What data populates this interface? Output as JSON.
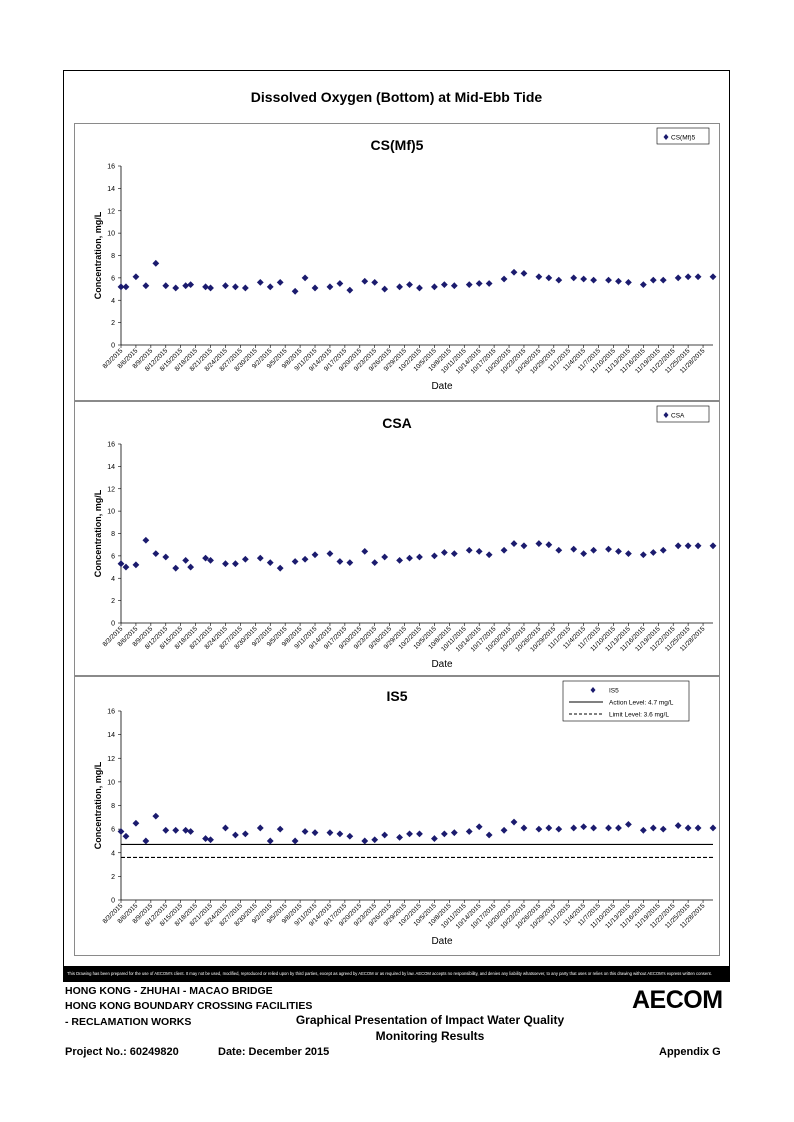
{
  "page": {
    "main_title": "Dissolved Oxygen (Bottom) at Mid-Ebb Tide",
    "disclaimer": "This Drawing has been prepared for the use of AECOM's client. It may not be used, modified, reproduced or relied upon by third parties, except as agreed by AECOM or as required by law. AECOM accepts no responsibility, and denies any liability whatsoever, to any party that uses or relies on this drawing without AECOM's express written consent.",
    "title_block": {
      "line1": "HONG KONG - ZHUHAI - MACAO BRIDGE",
      "line2": "HONG KONG BOUNDARY CROSSING FACILITIES",
      "line3": "- RECLAMATION WORKS",
      "drawing_title_1": "Graphical Presentation of Impact Water Quality",
      "drawing_title_2": "Monitoring Results",
      "project_no": "Project No.: 60249820",
      "date": "Date: December 2015",
      "appendix": "Appendix G",
      "logo": "AECOM"
    }
  },
  "chart_data": [
    {
      "type": "scatter",
      "title": "CS(Mf)5",
      "xlabel": "Date",
      "ylabel": "Concentration, mg/L",
      "ylim": [
        0,
        16
      ],
      "yticks": [
        0,
        2,
        4,
        6,
        8,
        10,
        12,
        14,
        16
      ],
      "xticks": [
        "8/3/2015",
        "8/6/2015",
        "8/9/2015",
        "8/12/2015",
        "8/15/2015",
        "8/18/2015",
        "8/21/2015",
        "8/24/2015",
        "8/27/2015",
        "8/30/2015",
        "9/2/2015",
        "9/5/2015",
        "9/8/2015",
        "9/11/2015",
        "9/14/2015",
        "9/17/2015",
        "9/20/2015",
        "9/23/2015",
        "9/26/2015",
        "9/29/2015",
        "10/2/2015",
        "10/5/2015",
        "10/8/2015",
        "10/11/2015",
        "10/14/2015",
        "10/17/2015",
        "10/20/2015",
        "10/23/2015",
        "10/26/2015",
        "10/29/2015",
        "11/1/2015",
        "11/4/2015",
        "11/7/2015",
        "11/10/2015",
        "11/13/2015",
        "11/16/2015",
        "11/19/2015",
        "11/22/2015",
        "11/25/2015",
        "11/28/2015"
      ],
      "legend": {
        "position": "top-right",
        "entries": [
          "CS(Mf)5"
        ]
      },
      "series": [
        {
          "name": "CS(Mf)5",
          "marker": "diamond",
          "color": "#1b1b6e",
          "x": [
            "8/3/2015",
            "8/4/2015",
            "8/6/2015",
            "8/8/2015",
            "8/10/2015",
            "8/12/2015",
            "8/14/2015",
            "8/16/2015",
            "8/17/2015",
            "8/20/2015",
            "8/21/2015",
            "8/24/2015",
            "8/26/2015",
            "8/28/2015",
            "8/31/2015",
            "9/2/2015",
            "9/4/2015",
            "9/7/2015",
            "9/9/2015",
            "9/11/2015",
            "9/14/2015",
            "9/16/2015",
            "9/18/2015",
            "9/21/2015",
            "9/23/2015",
            "9/25/2015",
            "9/28/2015",
            "9/30/2015",
            "10/2/2015",
            "10/5/2015",
            "10/7/2015",
            "10/9/2015",
            "10/12/2015",
            "10/14/2015",
            "10/16/2015",
            "10/19/2015",
            "10/21/2015",
            "10/23/2015",
            "10/26/2015",
            "10/28/2015",
            "10/30/2015",
            "11/2/2015",
            "11/4/2015",
            "11/6/2015",
            "11/9/2015",
            "11/11/2015",
            "11/13/2015",
            "11/16/2015",
            "11/18/2015",
            "11/20/2015",
            "11/23/2015",
            "11/25/2015",
            "11/27/2015",
            "11/30/2015"
          ],
          "values": [
            5.2,
            5.2,
            6.1,
            5.3,
            7.3,
            5.3,
            5.1,
            5.3,
            5.4,
            5.2,
            5.1,
            5.3,
            5.2,
            5.1,
            5.6,
            5.2,
            5.6,
            4.8,
            6.0,
            5.1,
            5.2,
            5.5,
            4.9,
            5.7,
            5.6,
            5.0,
            5.2,
            5.4,
            5.1,
            5.2,
            5.4,
            5.3,
            5.4,
            5.5,
            5.5,
            5.9,
            6.5,
            6.4,
            6.1,
            6.0,
            5.8,
            6.0,
            5.9,
            5.8,
            5.8,
            5.7,
            5.6,
            5.4,
            5.8,
            5.8,
            6.0,
            6.1,
            6.1,
            6.1
          ]
        }
      ]
    },
    {
      "type": "scatter",
      "title": "CSA",
      "xlabel": "Date",
      "ylabel": "Concentration, mg/L",
      "ylim": [
        0,
        16
      ],
      "yticks": [
        0,
        2,
        4,
        6,
        8,
        10,
        12,
        14,
        16
      ],
      "xticks": [
        "8/3/2015",
        "8/6/2015",
        "8/9/2015",
        "8/12/2015",
        "8/15/2015",
        "8/18/2015",
        "8/21/2015",
        "8/24/2015",
        "8/27/2015",
        "8/30/2015",
        "9/2/2015",
        "9/5/2015",
        "9/8/2015",
        "9/11/2015",
        "9/14/2015",
        "9/17/2015",
        "9/20/2015",
        "9/23/2015",
        "9/26/2015",
        "9/29/2015",
        "10/2/2015",
        "10/5/2015",
        "10/8/2015",
        "10/11/2015",
        "10/14/2015",
        "10/17/2015",
        "10/20/2015",
        "10/23/2015",
        "10/26/2015",
        "10/29/2015",
        "11/1/2015",
        "11/4/2015",
        "11/7/2015",
        "11/10/2015",
        "11/13/2015",
        "11/16/2015",
        "11/19/2015",
        "11/22/2015",
        "11/25/2015",
        "11/28/2015"
      ],
      "legend": {
        "position": "top-right",
        "entries": [
          "CSA"
        ]
      },
      "series": [
        {
          "name": "CSA",
          "marker": "diamond",
          "color": "#1b1b6e",
          "x": [
            "8/3/2015",
            "8/4/2015",
            "8/6/2015",
            "8/8/2015",
            "8/10/2015",
            "8/12/2015",
            "8/14/2015",
            "8/16/2015",
            "8/17/2015",
            "8/20/2015",
            "8/21/2015",
            "8/24/2015",
            "8/26/2015",
            "8/28/2015",
            "8/31/2015",
            "9/2/2015",
            "9/4/2015",
            "9/7/2015",
            "9/9/2015",
            "9/11/2015",
            "9/14/2015",
            "9/16/2015",
            "9/18/2015",
            "9/21/2015",
            "9/23/2015",
            "9/25/2015",
            "9/28/2015",
            "9/30/2015",
            "10/2/2015",
            "10/5/2015",
            "10/7/2015",
            "10/9/2015",
            "10/12/2015",
            "10/14/2015",
            "10/16/2015",
            "10/19/2015",
            "10/21/2015",
            "10/23/2015",
            "10/26/2015",
            "10/28/2015",
            "10/30/2015",
            "11/2/2015",
            "11/4/2015",
            "11/6/2015",
            "11/9/2015",
            "11/11/2015",
            "11/13/2015",
            "11/16/2015",
            "11/18/2015",
            "11/20/2015",
            "11/23/2015",
            "11/25/2015",
            "11/27/2015",
            "11/30/2015"
          ],
          "values": [
            5.3,
            5.0,
            5.2,
            7.4,
            6.2,
            5.9,
            4.9,
            5.6,
            5.0,
            5.8,
            5.6,
            5.3,
            5.3,
            5.7,
            5.8,
            5.4,
            4.9,
            5.5,
            5.7,
            6.1,
            6.2,
            5.5,
            5.4,
            6.4,
            5.4,
            5.9,
            5.6,
            5.8,
            5.9,
            6.0,
            6.3,
            6.2,
            6.5,
            6.4,
            6.1,
            6.5,
            7.1,
            6.9,
            7.1,
            7.0,
            6.5,
            6.6,
            6.2,
            6.5,
            6.6,
            6.4,
            6.2,
            6.1,
            6.3,
            6.5,
            6.9,
            6.9,
            6.9,
            6.9
          ]
        }
      ]
    },
    {
      "type": "scatter",
      "title": "IS5",
      "xlabel": "Date",
      "ylabel": "Concentration, mg/L",
      "ylim": [
        0,
        16
      ],
      "yticks": [
        0,
        2,
        4,
        6,
        8,
        10,
        12,
        14,
        16
      ],
      "xticks": [
        "8/3/2015",
        "8/6/2015",
        "8/9/2015",
        "8/12/2015",
        "8/15/2015",
        "8/18/2015",
        "8/21/2015",
        "8/24/2015",
        "8/27/2015",
        "8/30/2015",
        "9/2/2015",
        "9/5/2015",
        "9/8/2015",
        "9/11/2015",
        "9/14/2015",
        "9/17/2015",
        "9/20/2015",
        "9/23/2015",
        "9/26/2015",
        "9/29/2015",
        "10/2/2015",
        "10/5/2015",
        "10/8/2015",
        "10/11/2015",
        "10/14/2015",
        "10/17/2015",
        "10/20/2015",
        "10/23/2015",
        "10/26/2015",
        "10/29/2015",
        "11/1/2015",
        "11/4/2015",
        "11/7/2015",
        "11/10/2015",
        "11/13/2015",
        "11/16/2015",
        "11/19/2015",
        "11/22/2015",
        "11/25/2015",
        "11/28/2015"
      ],
      "legend": {
        "position": "top-right",
        "entries": [
          "IS5",
          "Action Level: 4.7 mg/L",
          "Limit Level: 3.6 mg/L"
        ]
      },
      "series": [
        {
          "name": "IS5",
          "marker": "diamond",
          "color": "#1b1b6e",
          "x": [
            "8/3/2015",
            "8/4/2015",
            "8/6/2015",
            "8/8/2015",
            "8/10/2015",
            "8/12/2015",
            "8/14/2015",
            "8/16/2015",
            "8/17/2015",
            "8/20/2015",
            "8/21/2015",
            "8/24/2015",
            "8/26/2015",
            "8/28/2015",
            "8/31/2015",
            "9/2/2015",
            "9/4/2015",
            "9/7/2015",
            "9/9/2015",
            "9/11/2015",
            "9/14/2015",
            "9/16/2015",
            "9/18/2015",
            "9/21/2015",
            "9/23/2015",
            "9/25/2015",
            "9/28/2015",
            "9/30/2015",
            "10/2/2015",
            "10/5/2015",
            "10/7/2015",
            "10/9/2015",
            "10/12/2015",
            "10/14/2015",
            "10/16/2015",
            "10/19/2015",
            "10/21/2015",
            "10/23/2015",
            "10/26/2015",
            "10/28/2015",
            "10/30/2015",
            "11/2/2015",
            "11/4/2015",
            "11/6/2015",
            "11/9/2015",
            "11/11/2015",
            "11/13/2015",
            "11/16/2015",
            "11/18/2015",
            "11/20/2015",
            "11/23/2015",
            "11/25/2015",
            "11/27/2015",
            "11/30/2015"
          ],
          "values": [
            5.8,
            5.4,
            6.5,
            5.0,
            7.1,
            5.9,
            5.9,
            5.9,
            5.8,
            5.2,
            5.1,
            6.1,
            5.5,
            5.6,
            6.1,
            5.0,
            6.0,
            5.0,
            5.8,
            5.7,
            5.7,
            5.6,
            5.4,
            5.0,
            5.1,
            5.5,
            5.3,
            5.6,
            5.6,
            5.2,
            5.6,
            5.7,
            5.8,
            6.2,
            5.5,
            5.9,
            6.6,
            6.1,
            6.0,
            6.1,
            6.0,
            6.1,
            6.2,
            6.1,
            6.1,
            6.1,
            6.4,
            5.9,
            6.1,
            6.0,
            6.3,
            6.1,
            6.1,
            6.1
          ]
        }
      ],
      "reference_lines": [
        {
          "name": "Action Level: 4.7 mg/L",
          "value": 4.7,
          "style": "solid",
          "color": "#000000"
        },
        {
          "name": "Limit Level: 3.6 mg/L",
          "value": 3.6,
          "style": "dashed",
          "color": "#000000"
        }
      ]
    }
  ]
}
